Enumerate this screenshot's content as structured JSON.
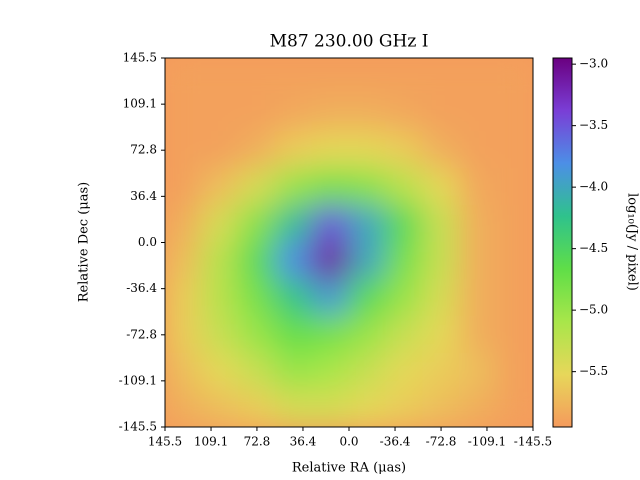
{
  "chart_data": {
    "type": "heatmap",
    "title": "M87 230.00 GHz I",
    "xlabel": "Relative RA (μas)",
    "ylabel": "Relative Dec (μas)",
    "colorbar_label": "log₁₀(Jy / pixel)",
    "xlim": [
      145.5,
      -145.5
    ],
    "ylim": [
      -145.5,
      145.5
    ],
    "xticks": [
      145.5,
      109.1,
      72.8,
      36.4,
      {
        "value": 0,
        "label": "0.0"
      },
      -36.4,
      -72.8,
      -109.1,
      -145.5
    ],
    "yticks": [
      145.5,
      109.1,
      72.8,
      36.4,
      {
        "value": 0,
        "label": "0.0"
      },
      -36.4,
      -72.8,
      -109.1,
      -145.5
    ],
    "clim": [
      -5.95,
      -2.95
    ],
    "cticks": [
      {
        "value": -3,
        "label": "−3.0"
      },
      {
        "value": -3.5,
        "label": "−3.5"
      },
      {
        "value": -4,
        "label": "−4.0"
      },
      {
        "value": -4.5,
        "label": "−4.5"
      },
      {
        "value": -5,
        "label": "−5.0"
      },
      {
        "value": -5.5,
        "label": "−5.5"
      }
    ],
    "colorscale": [
      "#f59a5c",
      "#e7d75a",
      "#a8e64a",
      "#5fde48",
      "#2fc28c",
      "#4c8fe6",
      "#7a3ed6",
      "#6a0080"
    ],
    "z": [
      [
        -5.9,
        -5.9,
        -5.9,
        -5.9,
        -5.9,
        -5.9,
        -5.9,
        -5.9,
        -5.9,
        -5.9
      ],
      [
        -5.9,
        -5.9,
        -5.9,
        -5.85,
        -5.8,
        -5.8,
        -5.85,
        -5.9,
        -5.9,
        -5.9
      ],
      [
        -5.9,
        -5.9,
        -5.8,
        -5.6,
        -5.5,
        -5.5,
        -5.6,
        -5.8,
        -5.9,
        -5.9
      ],
      [
        -5.9,
        -5.7,
        -5.4,
        -5.0,
        -4.8,
        -4.9,
        -5.2,
        -5.5,
        -5.85,
        -5.9
      ],
      [
        -5.8,
        -5.4,
        -4.9,
        -4.2,
        -3.5,
        -4.0,
        -4.6,
        -5.3,
        -5.8,
        -5.9
      ],
      [
        -5.7,
        -5.2,
        -4.6,
        -3.8,
        -3.1,
        -4.0,
        -4.8,
        -5.3,
        -5.8,
        -5.9
      ],
      [
        -5.6,
        -5.2,
        -4.8,
        -4.3,
        -3.9,
        -4.6,
        -5.0,
        -5.4,
        -5.8,
        -5.9
      ],
      [
        -5.6,
        -5.3,
        -5.0,
        -4.7,
        -4.8,
        -5.0,
        -5.3,
        -5.5,
        -5.8,
        -5.9
      ],
      [
        -5.7,
        -5.5,
        -5.3,
        -5.0,
        -5.1,
        -5.3,
        -5.5,
        -5.6,
        -5.7,
        -5.9
      ],
      [
        -5.8,
        -5.7,
        -5.6,
        -5.4,
        -5.4,
        -5.5,
        -5.6,
        -5.7,
        -5.8,
        -5.9
      ]
    ]
  }
}
